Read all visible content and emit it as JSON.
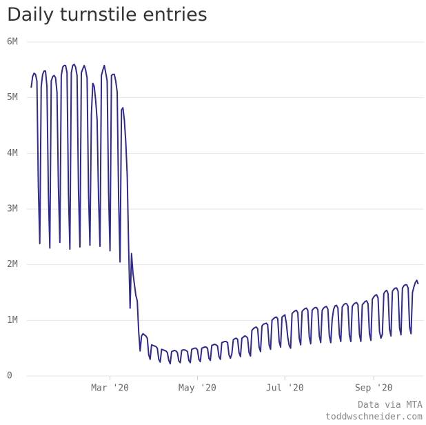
{
  "chart_data": {
    "type": "line",
    "title": "Daily turnstile entries",
    "credits": [
      "Data via MTA",
      "toddwschneider.com"
    ],
    "xlim": [
      2,
      279
    ],
    "xticks": [
      {
        "value": 60,
        "label": "Mar '20"
      },
      {
        "value": 121,
        "label": "May '20"
      },
      {
        "value": 182,
        "label": "Jul '20"
      },
      {
        "value": 244,
        "label": "Sep '20"
      }
    ],
    "ylim": [
      0,
      6
    ],
    "yticks": [
      0,
      {
        "value": 1,
        "label": "1M"
      },
      {
        "value": 2,
        "label": "2M"
      },
      {
        "value": 3,
        "label": "3M"
      },
      {
        "value": 4,
        "label": "4M"
      },
      {
        "value": 5,
        "label": "5M"
      },
      {
        "value": 6,
        "label": "6M"
      }
    ],
    "grid": true,
    "x": [
      5,
      6,
      7,
      8,
      9,
      10,
      11,
      12,
      13,
      14,
      15,
      16,
      17,
      18,
      19,
      20,
      21,
      22,
      23,
      24,
      25,
      26,
      27,
      28,
      29,
      30,
      31,
      32,
      33,
      34,
      35,
      36,
      37,
      38,
      39,
      40,
      41,
      42,
      43,
      44,
      45,
      46,
      47,
      48,
      49,
      50,
      51,
      52,
      53,
      54,
      55,
      56,
      57,
      58,
      59,
      60,
      61,
      62,
      63,
      64,
      65,
      66,
      67,
      68,
      69,
      70,
      71,
      72,
      73,
      74,
      75,
      76,
      77,
      78,
      79,
      80,
      81,
      82,
      83,
      84,
      85,
      86,
      87,
      88,
      89,
      90,
      91,
      92,
      93,
      94,
      95,
      96,
      97,
      98,
      99,
      100,
      101,
      102,
      103,
      104,
      105,
      106,
      107,
      108,
      109,
      110,
      111,
      112,
      113,
      114,
      115,
      116,
      117,
      118,
      119,
      120,
      121,
      122,
      123,
      124,
      125,
      126,
      127,
      128,
      129,
      130,
      131,
      132,
      133,
      134,
      135,
      136,
      137,
      138,
      139,
      140,
      141,
      142,
      143,
      144,
      145,
      146,
      147,
      148,
      149,
      150,
      151,
      152,
      153,
      154,
      155,
      156,
      157,
      158,
      159,
      160,
      161,
      162,
      163,
      164,
      165,
      166,
      167,
      168,
      169,
      170,
      171,
      172,
      173,
      174,
      175,
      176,
      177,
      178,
      179,
      180,
      181,
      182,
      183,
      184,
      185,
      186,
      187,
      188,
      189,
      190,
      191,
      192,
      193,
      194,
      195,
      196,
      197,
      198,
      199,
      200,
      201,
      202,
      203,
      204,
      205,
      206,
      207,
      208,
      209,
      210,
      211,
      212,
      213,
      214,
      215,
      216,
      217,
      218,
      219,
      220,
      221,
      222,
      223,
      224,
      225,
      226,
      227,
      228,
      229,
      230,
      231,
      232,
      233,
      234,
      235,
      236,
      237,
      238,
      239,
      240,
      241,
      242,
      243,
      244,
      245,
      246,
      247,
      248,
      249,
      250,
      251,
      252,
      253,
      254,
      255,
      256,
      257,
      258,
      259,
      260,
      261,
      262,
      263,
      264,
      265,
      266,
      267,
      268,
      269,
      270,
      271,
      272,
      273,
      274,
      275
    ],
    "series": [
      {
        "color": "#2e2a8f",
        "values": [
          5.18,
          5.38,
          5.44,
          5.42,
          5.3,
          3.4,
          2.38,
          5.2,
          5.42,
          5.48,
          5.48,
          5.2,
          3.3,
          2.3,
          5.3,
          5.38,
          5.4,
          5.36,
          5.1,
          3.4,
          2.4,
          5.4,
          5.55,
          5.58,
          5.58,
          5.45,
          3.3,
          2.28,
          5.45,
          5.58,
          5.6,
          5.55,
          5.4,
          3.35,
          2.32,
          5.45,
          5.52,
          5.58,
          5.5,
          5.35,
          3.3,
          2.35,
          4.7,
          5.26,
          5.2,
          4.95,
          4.6,
          3.2,
          2.33,
          5.4,
          5.5,
          5.58,
          5.45,
          5.3,
          3.3,
          2.25,
          5.4,
          5.42,
          5.42,
          5.3,
          5.1,
          3.2,
          2.05,
          4.78,
          4.82,
          4.6,
          4.2,
          3.6,
          2.3,
          1.22,
          2.2,
          1.85,
          1.65,
          1.45,
          1.35,
          0.8,
          0.45,
          0.72,
          0.76,
          0.74,
          0.72,
          0.68,
          0.38,
          0.3,
          0.56,
          0.55,
          0.54,
          0.53,
          0.5,
          0.3,
          0.25,
          0.48,
          0.47,
          0.46,
          0.45,
          0.42,
          0.28,
          0.22,
          0.44,
          0.45,
          0.46,
          0.45,
          0.42,
          0.27,
          0.24,
          0.46,
          0.47,
          0.47,
          0.46,
          0.44,
          0.28,
          0.24,
          0.48,
          0.49,
          0.5,
          0.5,
          0.47,
          0.3,
          0.26,
          0.5,
          0.51,
          0.52,
          0.52,
          0.5,
          0.32,
          0.28,
          0.55,
          0.56,
          0.57,
          0.56,
          0.54,
          0.35,
          0.3,
          0.6,
          0.61,
          0.62,
          0.62,
          0.6,
          0.38,
          0.32,
          0.4,
          0.65,
          0.67,
          0.68,
          0.66,
          0.42,
          0.35,
          0.68,
          0.7,
          0.72,
          0.71,
          0.68,
          0.42,
          0.36,
          0.82,
          0.85,
          0.87,
          0.88,
          0.85,
          0.52,
          0.44,
          0.9,
          0.93,
          0.94,
          0.95,
          0.92,
          0.56,
          0.48,
          1.0,
          1.03,
          1.05,
          1.06,
          1.03,
          0.62,
          0.52,
          1.06,
          1.08,
          1.1,
          0.95,
          0.7,
          0.55,
          0.5,
          1.12,
          1.15,
          1.17,
          1.18,
          1.14,
          0.68,
          0.56,
          1.16,
          1.19,
          1.21,
          1.22,
          1.18,
          0.7,
          0.58,
          1.18,
          1.21,
          1.23,
          1.23,
          1.19,
          0.72,
          0.6,
          1.18,
          1.22,
          1.24,
          1.25,
          1.2,
          0.72,
          0.6,
          1.02,
          1.2,
          1.26,
          1.27,
          1.22,
          0.74,
          0.62,
          1.24,
          1.28,
          1.3,
          1.3,
          1.26,
          0.74,
          0.62,
          1.25,
          1.29,
          1.31,
          1.32,
          1.28,
          0.75,
          0.62,
          1.28,
          1.31,
          1.34,
          1.35,
          1.3,
          0.76,
          0.64,
          1.38,
          1.42,
          1.45,
          1.46,
          1.4,
          0.8,
          0.68,
          0.75,
          1.48,
          1.52,
          1.54,
          1.48,
          0.84,
          0.72,
          1.52,
          1.56,
          1.58,
          1.58,
          1.52,
          0.86,
          0.74,
          1.58,
          1.62,
          1.64,
          1.64,
          1.58,
          0.88,
          0.76,
          1.5,
          1.6,
          1.68,
          1.72,
          1.65
        ]
      }
    ]
  }
}
